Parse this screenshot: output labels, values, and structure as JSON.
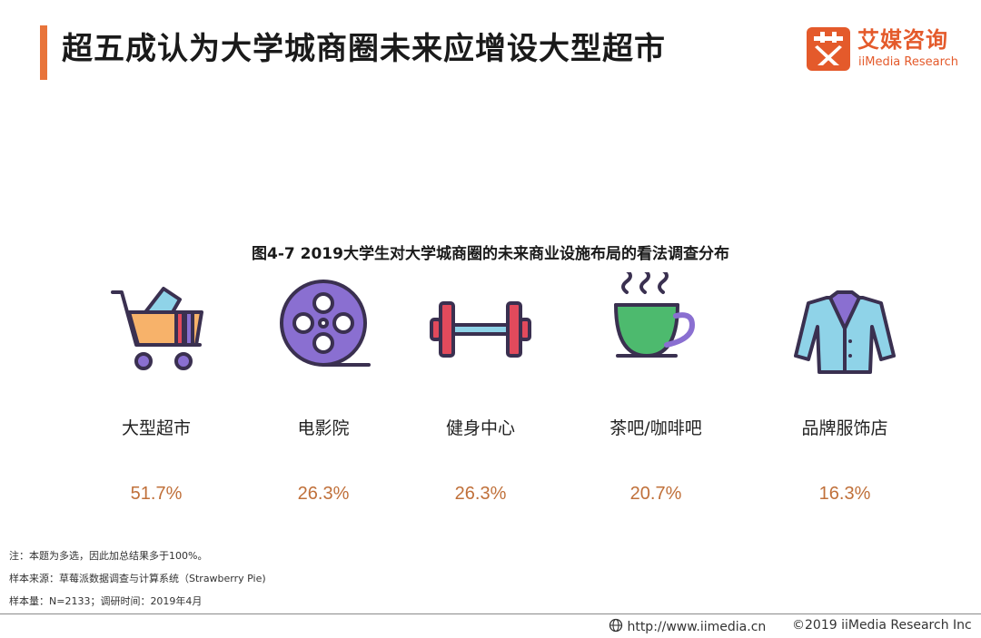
{
  "header": {
    "title": "超五成认为大学城商圈未来应增设大型超市"
  },
  "logo": {
    "cn": "艾媒咨询",
    "en": "iiMedia Research"
  },
  "chart_data": {
    "type": "bar",
    "title": "图4-7 2019大学生对大学城商圈的未来商业设施布局的看法调查分布",
    "categories": [
      "大型超市",
      "电影院",
      "健身中心",
      "茶吧/咖啡吧",
      "品牌服饰店"
    ],
    "values": [
      51.7,
      26.3,
      26.3,
      20.7,
      16.3
    ],
    "value_labels": [
      "51.7%",
      "26.3%",
      "26.3%",
      "20.7%",
      "16.3%"
    ],
    "icons": [
      "shopping-cart-icon",
      "film-reel-icon",
      "dumbbell-icon",
      "coffee-cup-icon",
      "jacket-icon"
    ],
    "xlabel": "",
    "ylabel": "",
    "value_color": "#c0703a"
  },
  "notes": [
    "注：本题为多选，因此加总结果多于100%。",
    "样本来源：草莓派数据调查与计算系统（Strawberry Pie)",
    "样本量：N=2133；调研时间：2019年4月"
  ],
  "footer": {
    "url": "http://www.iimedia.cn",
    "copyright": "©2019  iiMedia Research  Inc"
  },
  "colors": {
    "accent": "#e8743b",
    "brand": "#e45a2b"
  }
}
